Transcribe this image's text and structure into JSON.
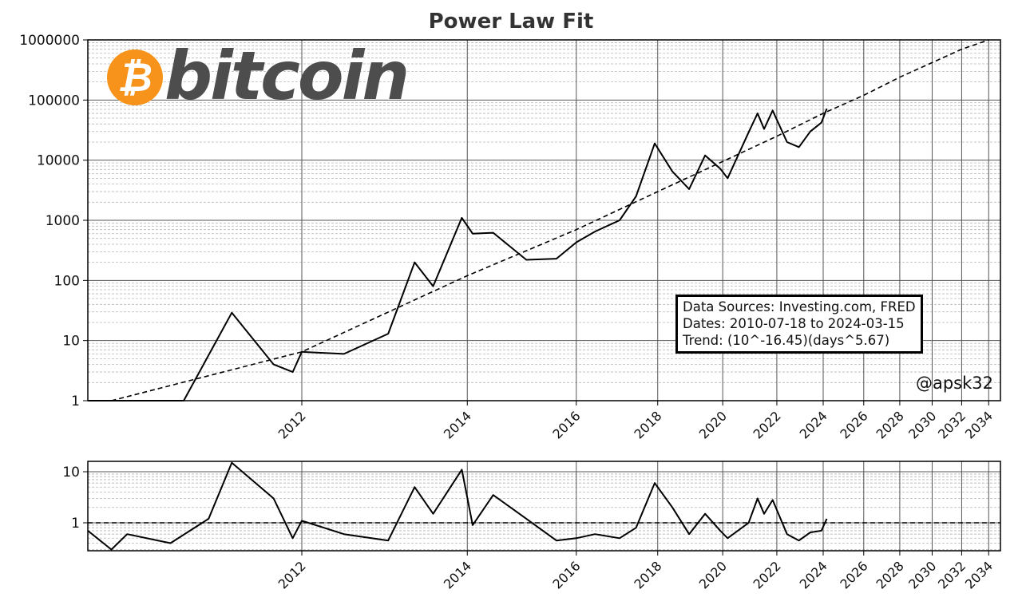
{
  "chart_data": [
    {
      "type": "line",
      "title": "Power Law Fit",
      "xlabel": "",
      "ylabel": "",
      "yscale": "log",
      "ylim": [
        1,
        1000000
      ],
      "xlim": [
        "2010-07",
        "2034-06"
      ],
      "grid": true,
      "yticks": [
        "1",
        "10",
        "100",
        "1000",
        "10000",
        "100000",
        "1000000"
      ],
      "xticks": [
        "2012",
        "2014",
        "2016",
        "2018",
        "2020",
        "2022",
        "2024",
        "2026",
        "2028",
        "2030",
        "2032",
        "2034"
      ],
      "series": [
        {
          "name": "BTC price (USD)",
          "style": "solid",
          "x": [
            "2010-07",
            "2011-02",
            "2011-06",
            "2011-10",
            "2011-12",
            "2012-01",
            "2012-06",
            "2012-12",
            "2013-04",
            "2013-07",
            "2013-12",
            "2014-02",
            "2014-06",
            "2015-01",
            "2015-08",
            "2016-01",
            "2016-06",
            "2017-01",
            "2017-06",
            "2017-12",
            "2018-06",
            "2018-12",
            "2019-06",
            "2019-12",
            "2020-03",
            "2020-12",
            "2021-04",
            "2021-07",
            "2021-11",
            "2022-06",
            "2022-12",
            "2023-06",
            "2023-12",
            "2024-03"
          ],
          "values": [
            0.07,
            1,
            29,
            4,
            3,
            6.5,
            6,
            13,
            200,
            80,
            1100,
            600,
            620,
            220,
            230,
            430,
            650,
            1000,
            2500,
            19000,
            6500,
            3300,
            12000,
            7200,
            5000,
            29000,
            60000,
            33000,
            67000,
            20000,
            16500,
            30000,
            42000,
            72000
          ]
        },
        {
          "name": "Power law trend",
          "style": "dashed",
          "formula": "(10^-16.45)(days^5.67)",
          "x": [
            "2010-09",
            "2012",
            "2014",
            "2016",
            "2018",
            "2020",
            "2022",
            "2024",
            "2026",
            "2028",
            "2030",
            "2032",
            "2034"
          ],
          "values": [
            1,
            6.5,
            120,
            700,
            3000,
            9500,
            25000,
            60000,
            120000,
            240000,
            420000,
            700000,
            1000000
          ]
        }
      ],
      "annotations": {
        "info_box": [
          "Data Sources: Investing.com, FRED",
          "Dates: 2010-07-18 to 2024-03-15",
          "Trend: (10^-16.45)(days^5.67)"
        ],
        "credit": "@apsk32",
        "logo": "bitcoin"
      }
    },
    {
      "type": "line",
      "title": "",
      "yscale": "log",
      "ylim": [
        0.25,
        15
      ],
      "yticks": [
        "1",
        "10"
      ],
      "xticks": [
        "2012",
        "2014",
        "2016",
        "2018",
        "2020",
        "2022",
        "2024",
        "2026",
        "2028",
        "2030",
        "2032",
        "2034"
      ],
      "grid": true,
      "reference_line": {
        "y": 1,
        "style": "dashed"
      },
      "series": [
        {
          "name": "Price / trend ratio",
          "x": [
            "2010-07",
            "2010-09",
            "2010-10",
            "2011-01",
            "2011-04",
            "2011-06",
            "2011-10",
            "2011-12",
            "2012-01",
            "2012-06",
            "2012-12",
            "2013-04",
            "2013-07",
            "2013-12",
            "2014-02",
            "2014-06",
            "2015-01",
            "2015-08",
            "2016-01",
            "2016-06",
            "2017-01",
            "2017-06",
            "2017-12",
            "2018-06",
            "2018-12",
            "2019-06",
            "2019-12",
            "2020-03",
            "2020-12",
            "2021-04",
            "2021-07",
            "2021-11",
            "2022-06",
            "2022-12",
            "2023-06",
            "2023-12",
            "2024-03"
          ],
          "values": [
            0.7,
            0.3,
            0.6,
            0.4,
            1.2,
            15,
            3,
            0.5,
            1.1,
            0.6,
            0.45,
            5,
            1.5,
            11,
            0.9,
            3.5,
            1.2,
            0.45,
            0.5,
            0.6,
            0.5,
            0.8,
            6,
            2,
            0.6,
            1.5,
            0.7,
            0.5,
            1.0,
            3,
            1.5,
            2.8,
            0.6,
            0.45,
            0.65,
            0.7,
            1.2
          ]
        }
      ]
    }
  ],
  "header": {
    "title": "Power Law Fit"
  },
  "logo": {
    "symbol": "₿",
    "text": "bitcoin",
    "color": "#f7931a"
  },
  "info_box": {
    "line1": "Data Sources: Investing.com, FRED",
    "line2": "Dates: 2010-07-18 to 2024-03-15",
    "line3": "Trend: (10^-16.45)(days^5.67)"
  },
  "credit": "@apsk32"
}
